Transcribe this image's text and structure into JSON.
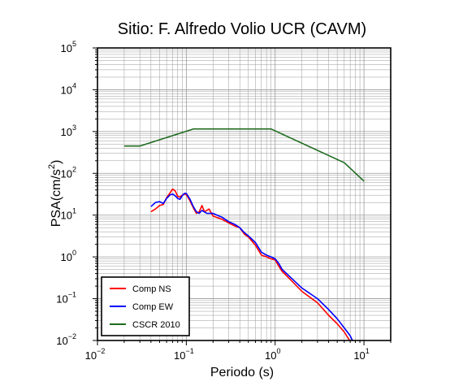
{
  "chart_data": {
    "type": "line",
    "title": "Sitio: F. Alfredo Volio UCR (CAVM)",
    "xlabel": "Periodo (s)",
    "ylabel_base": "PSA(cm/s",
    "ylabel_sup": "2",
    "ylabel_tail": ")",
    "x_scale": "log",
    "y_scale": "log",
    "xlim": [
      0.01,
      20
    ],
    "ylim": [
      0.01,
      100000
    ],
    "grid": true,
    "legend_position": "bottom-left",
    "x_ticks": [
      {
        "value": 0.01,
        "base": "10",
        "exp": "−2"
      },
      {
        "value": 0.1,
        "base": "10",
        "exp": "−1"
      },
      {
        "value": 1,
        "base": "10",
        "exp": "0"
      },
      {
        "value": 10,
        "base": "10",
        "exp": "1"
      }
    ],
    "y_ticks": [
      {
        "value": 0.01,
        "base": "10",
        "exp": "−2"
      },
      {
        "value": 0.1,
        "base": "10",
        "exp": "−1"
      },
      {
        "value": 1,
        "base": "10",
        "exp": "0"
      },
      {
        "value": 10,
        "base": "10",
        "exp": "1"
      },
      {
        "value": 100,
        "base": "10",
        "exp": "2"
      },
      {
        "value": 1000,
        "base": "10",
        "exp": "3"
      },
      {
        "value": 10000,
        "base": "10",
        "exp": "4"
      },
      {
        "value": 100000,
        "base": "10",
        "exp": "5"
      }
    ],
    "series": [
      {
        "name": "Comp NS",
        "color": "#ff0000",
        "points": [
          [
            0.04,
            12
          ],
          [
            0.045,
            14
          ],
          [
            0.05,
            17
          ],
          [
            0.055,
            18
          ],
          [
            0.06,
            26
          ],
          [
            0.065,
            33
          ],
          [
            0.07,
            42
          ],
          [
            0.075,
            38
          ],
          [
            0.08,
            28
          ],
          [
            0.085,
            27
          ],
          [
            0.09,
            30
          ],
          [
            0.095,
            32
          ],
          [
            0.1,
            31
          ],
          [
            0.11,
            22
          ],
          [
            0.12,
            15
          ],
          [
            0.13,
            11
          ],
          [
            0.14,
            12
          ],
          [
            0.15,
            17
          ],
          [
            0.16,
            12
          ],
          [
            0.17,
            13
          ],
          [
            0.18,
            14
          ],
          [
            0.2,
            9.5
          ],
          [
            0.25,
            8
          ],
          [
            0.3,
            6.5
          ],
          [
            0.35,
            5.5
          ],
          [
            0.4,
            5
          ],
          [
            0.45,
            3.5
          ],
          [
            0.5,
            3
          ],
          [
            0.6,
            1.9
          ],
          [
            0.7,
            1.1
          ],
          [
            0.8,
            1.0
          ],
          [
            0.9,
            0.9
          ],
          [
            1.0,
            0.85
          ],
          [
            1.1,
            0.6
          ],
          [
            1.2,
            0.45
          ],
          [
            1.5,
            0.28
          ],
          [
            2.0,
            0.15
          ],
          [
            3.0,
            0.08
          ],
          [
            4.0,
            0.04
          ],
          [
            5.0,
            0.025
          ],
          [
            6.0,
            0.016
          ],
          [
            7.0,
            0.0095
          ]
        ]
      },
      {
        "name": "Comp EW",
        "color": "#0000ff",
        "points": [
          [
            0.04,
            16
          ],
          [
            0.045,
            20
          ],
          [
            0.05,
            21
          ],
          [
            0.055,
            19
          ],
          [
            0.06,
            25
          ],
          [
            0.065,
            30
          ],
          [
            0.07,
            32
          ],
          [
            0.075,
            29
          ],
          [
            0.08,
            25
          ],
          [
            0.085,
            24
          ],
          [
            0.09,
            29
          ],
          [
            0.095,
            33
          ],
          [
            0.1,
            33
          ],
          [
            0.11,
            24
          ],
          [
            0.12,
            16
          ],
          [
            0.13,
            12
          ],
          [
            0.14,
            11
          ],
          [
            0.15,
            13
          ],
          [
            0.17,
            11
          ],
          [
            0.2,
            11
          ],
          [
            0.25,
            9
          ],
          [
            0.3,
            7
          ],
          [
            0.35,
            6
          ],
          [
            0.4,
            5
          ],
          [
            0.45,
            3.8
          ],
          [
            0.5,
            3.2
          ],
          [
            0.6,
            2.2
          ],
          [
            0.7,
            1.3
          ],
          [
            0.8,
            1.1
          ],
          [
            0.9,
            1.0
          ],
          [
            1.0,
            0.9
          ],
          [
            1.1,
            0.7
          ],
          [
            1.2,
            0.5
          ],
          [
            1.5,
            0.32
          ],
          [
            2.0,
            0.18
          ],
          [
            3.0,
            0.1
          ],
          [
            4.0,
            0.055
          ],
          [
            5.0,
            0.033
          ],
          [
            6.0,
            0.02
          ],
          [
            7.0,
            0.013
          ],
          [
            7.5,
            0.0095
          ]
        ]
      },
      {
        "name": "CSCR 2010",
        "color": "#1e6b1e",
        "points": [
          [
            0.02,
            450
          ],
          [
            0.03,
            450
          ],
          [
            0.12,
            1150
          ],
          [
            0.9,
            1150
          ],
          [
            6.0,
            180
          ],
          [
            10.0,
            65
          ]
        ]
      }
    ]
  }
}
